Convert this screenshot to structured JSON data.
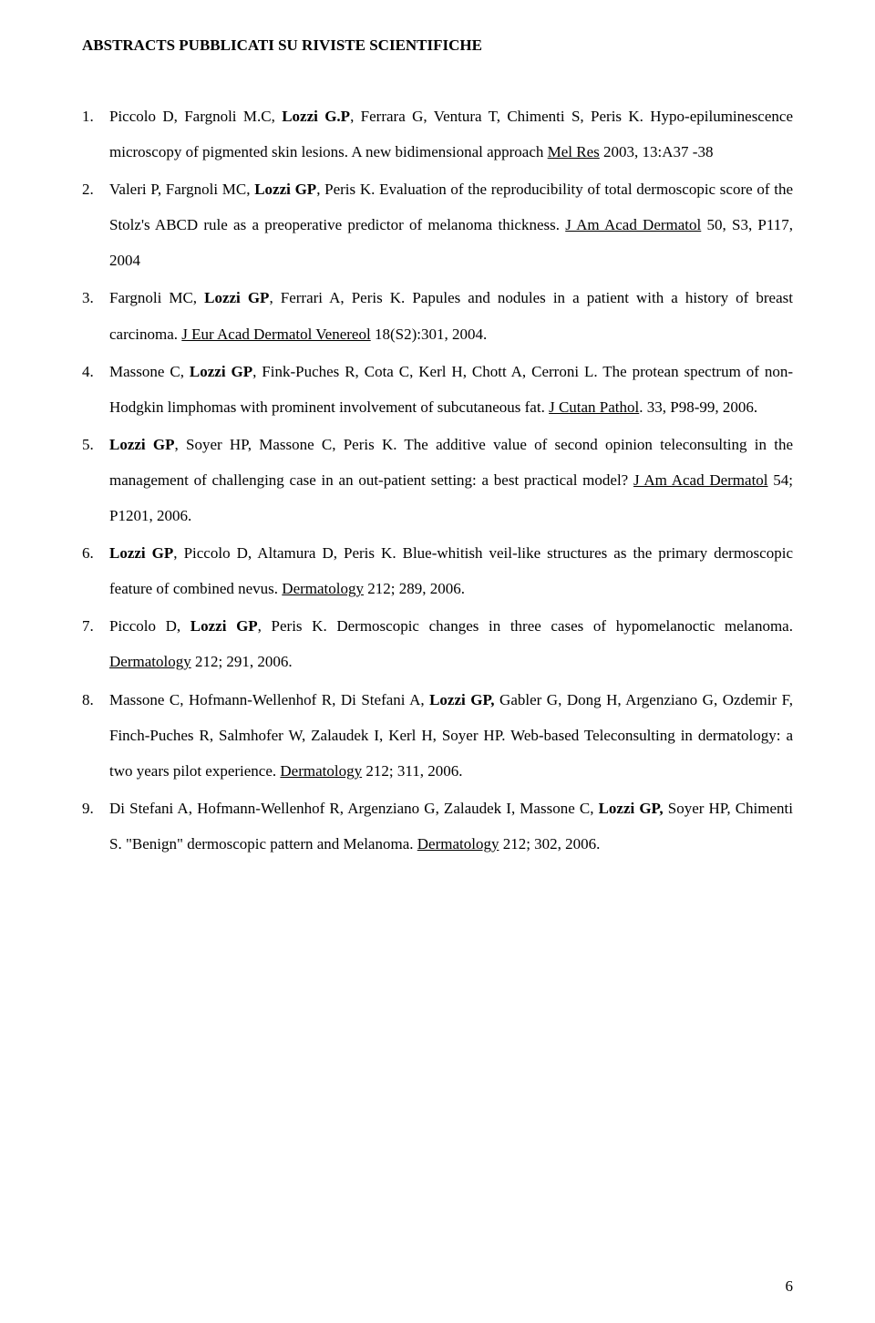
{
  "title": "ABSTRACTS PUBBLICATI SU RIVISTE SCIENTIFICHE",
  "items": [
    {
      "num": "1.",
      "segments": [
        {
          "text": "Piccolo D, Fargnoli M.C, "
        },
        {
          "text": "Lozzi G.P",
          "bold": true
        },
        {
          "text": ", Ferrara G, Ventura T, Chimenti S, Peris K. Hypo-epiluminescence microscopy of pigmented skin lesions. A new bidimensional approach "
        },
        {
          "text": "Mel Res",
          "underline": true
        },
        {
          "text": "  2003, 13:A37 -38"
        }
      ]
    },
    {
      "num": "2.",
      "segments": [
        {
          "text": "Valeri P, Fargnoli MC, "
        },
        {
          "text": "Lozzi GP",
          "bold": true
        },
        {
          "text": ", Peris K. Evaluation of the reproducibility of total dermoscopic score of the Stolz's ABCD rule as a preoperative predictor of melanoma thickness. "
        },
        {
          "text": "J Am Acad Dermatol",
          "underline": true
        },
        {
          "text": " 50, S3, P117, 2004"
        }
      ]
    },
    {
      "num": "3.",
      "segments": [
        {
          "text": "Fargnoli MC, "
        },
        {
          "text": "Lozzi GP",
          "bold": true
        },
        {
          "text": ", Ferrari A, Peris K. Papules and nodules in a patient with a history of breast carcinoma. "
        },
        {
          "text": "J Eur Acad Dermatol Venereol",
          "underline": true
        },
        {
          "text": " 18(S2):301, 2004."
        }
      ]
    },
    {
      "num": "4.",
      "segments": [
        {
          "text": "Massone C, "
        },
        {
          "text": "Lozzi GP",
          "bold": true
        },
        {
          "text": ", Fink-Puches R, Cota C, Kerl H, Chott A, Cerroni L. The protean spectrum of non-Hodgkin limphomas with prominent involvement of subcutaneous fat. "
        },
        {
          "text": "J Cutan Pathol",
          "underline": true
        },
        {
          "text": ". 33, P98-99, 2006."
        }
      ]
    },
    {
      "num": "5.",
      "segments": [
        {
          "text": "Lozzi GP",
          "bold": true
        },
        {
          "text": ", Soyer HP, Massone C, Peris K. The additive value of second opinion teleconsulting in the management of challenging case in an out-patient setting: a best practical model? "
        },
        {
          "text": "J Am Acad Dermatol",
          "underline": true
        },
        {
          "text": " 54; P1201, 2006."
        }
      ]
    },
    {
      "num": "6.",
      "segments": [
        {
          "text": "Lozzi GP",
          "bold": true
        },
        {
          "text": ", Piccolo D, Altamura D, Peris K. Blue-whitish veil-like structures as the primary dermoscopic feature of combined nevus. "
        },
        {
          "text": "Dermatology",
          "underline": true
        },
        {
          "text": " 212; 289, 2006."
        }
      ]
    },
    {
      "num": "7.",
      "segments": [
        {
          "text": "Piccolo D, "
        },
        {
          "text": "Lozzi GP",
          "bold": true
        },
        {
          "text": ", Peris K. Dermoscopic changes in three cases of hypomelanoctic melanoma. "
        },
        {
          "text": "Dermatology",
          "underline": true
        },
        {
          "text": " 212; 291, 2006."
        }
      ]
    },
    {
      "num": "8.",
      "segments": [
        {
          "text": "Massone C, Hofmann-Wellenhof R, Di Stefani A, "
        },
        {
          "text": "Lozzi GP,",
          "bold": true
        },
        {
          "text": " Gabler G, Dong H, Argenziano G, Ozdemir F, Finch-Puches R, Salmhofer W, Zalaudek I, Kerl H, Soyer HP. Web-based Teleconsulting in dermatology: a two years pilot experience. "
        },
        {
          "text": "Dermatology",
          "underline": true
        },
        {
          "text": " 212; 311, 2006."
        }
      ]
    },
    {
      "num": "9.",
      "segments": [
        {
          "text": "Di Stefani A, Hofmann-Wellenhof R, Argenziano G, Zalaudek I, Massone C, "
        },
        {
          "text": "Lozzi GP,",
          "bold": true
        },
        {
          "text": " Soyer HP, Chimenti S. \"Benign\" dermoscopic pattern and Melanoma. "
        },
        {
          "text": "Dermatology",
          "underline": true
        },
        {
          "text": " 212; 302, 2006."
        }
      ]
    }
  ],
  "pageNumber": "6"
}
